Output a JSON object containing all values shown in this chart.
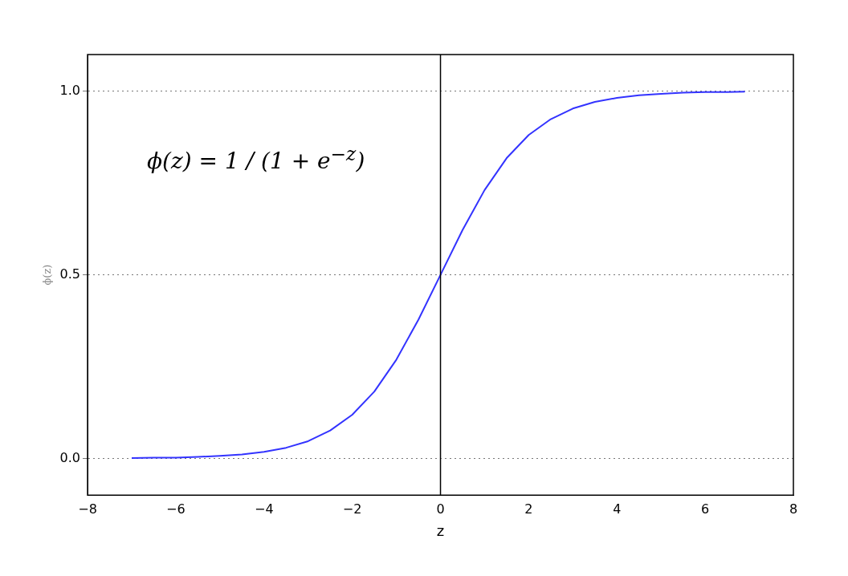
{
  "chart_data": {
    "type": "line",
    "xlabel": "z",
    "ylabel": "ϕ(z)",
    "annotations": [
      "ϕ(z) = 1 / (1 + e$^{−z}$)"
    ],
    "x": [
      -7,
      -6.5,
      -6,
      -5.5,
      -5,
      -4.5,
      -4,
      -3.5,
      -3,
      -2.5,
      -2,
      -1.5,
      -1,
      -0.5,
      0,
      0.5,
      1,
      1.5,
      2,
      2.5,
      3,
      3.5,
      4,
      4.5,
      5,
      5.5,
      6,
      6.5,
      6.9
    ],
    "series": [
      {
        "color": "#3333ff",
        "values": [
          0.001,
          0.002,
          0.002,
          0.004,
          0.007,
          0.011,
          0.018,
          0.029,
          0.047,
          0.076,
          0.119,
          0.182,
          0.269,
          0.378,
          0.5,
          0.622,
          0.731,
          0.818,
          0.881,
          0.924,
          0.953,
          0.971,
          0.982,
          0.989,
          0.993,
          0.996,
          0.998,
          0.998,
          0.999
        ]
      }
    ],
    "xlim": [
      -8,
      8
    ],
    "xticks": [
      {
        "value": -8,
        "label": "−8"
      },
      {
        "value": -6,
        "label": "−6"
      },
      {
        "value": -4,
        "label": "−4"
      },
      {
        "value": -2,
        "label": "−2"
      },
      0,
      2,
      4,
      6,
      8
    ],
    "ylim": [
      -0.1,
      1.1
    ],
    "yticks": [
      {
        "value": 0,
        "label": "0.0"
      },
      {
        "value": 0.5,
        "label": "0.5"
      },
      {
        "value": 1,
        "label": "1.0"
      }
    ],
    "grid": "y",
    "line_style": "solid",
    "marker": "none",
    "legend": false,
    "ref_lines": [
      {
        "axis": "x",
        "value": 0,
        "color": "#000000",
        "line_style": "solid"
      }
    ]
  }
}
